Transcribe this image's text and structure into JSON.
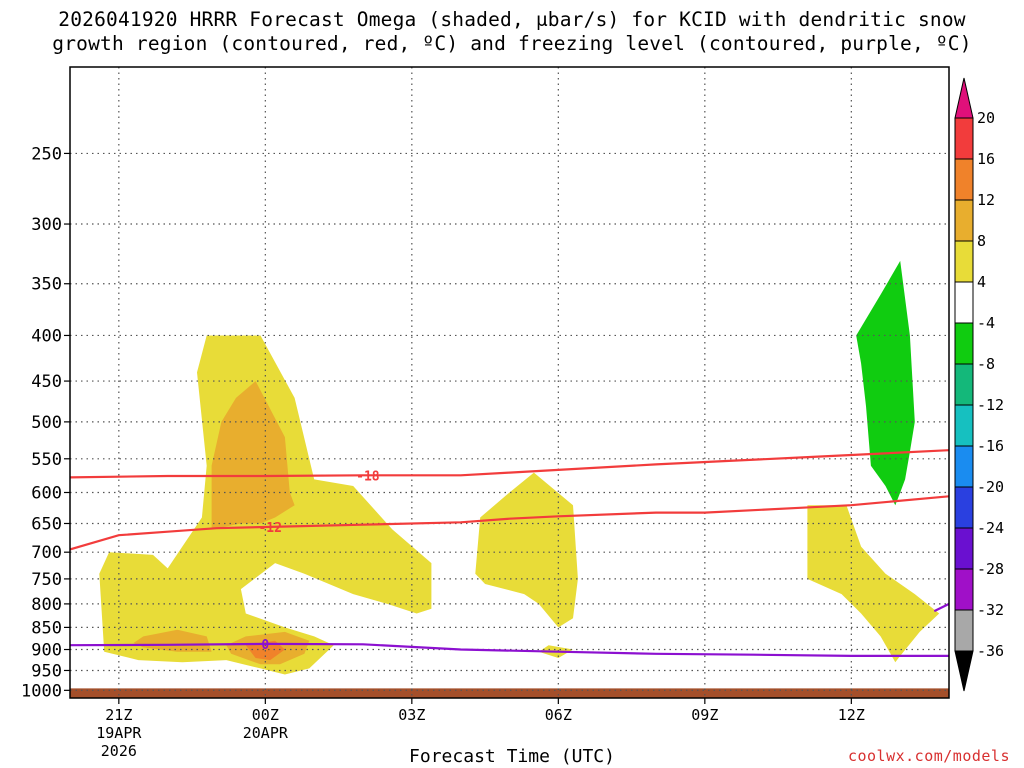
{
  "chart_data": {
    "type": "heatmap",
    "title_lines": [
      "2026041920 HRRR Forecast Omega (shaded, μbar/s) for KCID with dendritic snow",
      "growth region (contoured, red, ºC) and freezing level (contoured, purple, ºC)"
    ],
    "xlabel": "Forecast Time (UTC)",
    "ylabel": "",
    "x_range_hours": [
      -1,
      17
    ],
    "y_range_hpa": [
      1020,
      200
    ],
    "y_scale": "log-pressure",
    "grid": true,
    "x_ticks": [
      {
        "hour": 0,
        "lines": [
          "21Z",
          "19APR",
          "2026"
        ]
      },
      {
        "hour": 3,
        "lines": [
          "00Z",
          "20APR"
        ]
      },
      {
        "hour": 6,
        "lines": [
          "03Z"
        ]
      },
      {
        "hour": 9,
        "lines": [
          "06Z"
        ]
      },
      {
        "hour": 12,
        "lines": [
          "09Z"
        ]
      },
      {
        "hour": 15,
        "lines": [
          "12Z"
        ]
      }
    ],
    "y_ticks": [
      250,
      300,
      350,
      400,
      450,
      500,
      550,
      600,
      650,
      700,
      750,
      800,
      850,
      900,
      950,
      1000
    ],
    "colorbar": {
      "labels": [
        "20",
        "16",
        "12",
        "8",
        "4",
        "-4",
        "-8",
        "-12",
        "-16",
        "-20",
        "-24",
        "-28",
        "-32",
        "-36"
      ],
      "bins": [
        {
          "from": 16,
          "to": 20,
          "color": "#f23c3c"
        },
        {
          "from": 12,
          "to": 16,
          "color": "#f0822a"
        },
        {
          "from": 8,
          "to": 12,
          "color": "#e8ae2e"
        },
        {
          "from": 4,
          "to": 8,
          "color": "#e8dc38"
        },
        {
          "from": -4,
          "to": 4,
          "color": "#ffffff"
        },
        {
          "from": -8,
          "to": -4,
          "color": "#10cc10"
        },
        {
          "from": -12,
          "to": -8,
          "color": "#14b87a"
        },
        {
          "from": -16,
          "to": -12,
          "color": "#16c0c0"
        },
        {
          "from": -20,
          "to": -16,
          "color": "#1a8cf0"
        },
        {
          "from": -24,
          "to": -20,
          "color": "#2a40e0"
        },
        {
          "from": -28,
          "to": -24,
          "color": "#6a10d0"
        },
        {
          "from": -32,
          "to": -28,
          "color": "#a010c8"
        },
        {
          "from": -36,
          "to": -32,
          "color": "#a8a8a8"
        }
      ],
      "top_arrow_color": "#e0107a",
      "bottom_arrow_color": "#000000"
    },
    "shaded_regions": [
      {
        "value_bin": "4 to 8",
        "color": "#e8dc38",
        "points": [
          [
            1.8,
            400
          ],
          [
            2.9,
            400
          ],
          [
            3.6,
            470
          ],
          [
            4,
            580
          ],
          [
            4.8,
            590
          ],
          [
            5.6,
            660
          ],
          [
            6.4,
            720
          ],
          [
            6.4,
            810
          ],
          [
            6.1,
            820
          ],
          [
            5.5,
            800
          ],
          [
            4.8,
            780
          ],
          [
            3.8,
            740
          ],
          [
            3.2,
            720
          ],
          [
            2.5,
            770
          ],
          [
            2.6,
            820
          ],
          [
            3.4,
            850
          ],
          [
            4,
            870
          ],
          [
            4.4,
            890
          ],
          [
            3.9,
            945
          ],
          [
            3.4,
            960
          ],
          [
            2.9,
            945
          ],
          [
            2.2,
            925
          ],
          [
            1.3,
            930
          ],
          [
            0.4,
            925
          ],
          [
            -0.3,
            905
          ],
          [
            -0.4,
            740
          ],
          [
            -0.2,
            700
          ],
          [
            0.7,
            705
          ],
          [
            1,
            730
          ],
          [
            1.3,
            690
          ],
          [
            1.7,
            640
          ],
          [
            1.8,
            560
          ],
          [
            1.6,
            440
          ]
        ]
      },
      {
        "value_bin": "4 to 8",
        "color": "#e8dc38",
        "points": [
          [
            8.5,
            570
          ],
          [
            9.3,
            620
          ],
          [
            9.4,
            750
          ],
          [
            9.3,
            830
          ],
          [
            9,
            850
          ],
          [
            8.6,
            800
          ],
          [
            8.3,
            780
          ],
          [
            7.5,
            760
          ],
          [
            7.3,
            740
          ],
          [
            7.4,
            640
          ],
          [
            8,
            600
          ]
        ]
      },
      {
        "value_bin": "4 to 8",
        "color": "#e8dc38",
        "points": [
          [
            8.8,
            890
          ],
          [
            9.3,
            900
          ],
          [
            9,
            920
          ],
          [
            8.6,
            905
          ]
        ]
      },
      {
        "value_bin": "4 to 8",
        "color": "#e8dc38",
        "points": [
          [
            14.1,
            620
          ],
          [
            14.9,
            620
          ],
          [
            15.2,
            690
          ],
          [
            15.7,
            740
          ],
          [
            16.3,
            780
          ],
          [
            16.8,
            820
          ],
          [
            16.4,
            860
          ],
          [
            16,
            915
          ],
          [
            15.9,
            930
          ],
          [
            15.6,
            870
          ],
          [
            15.2,
            820
          ],
          [
            14.8,
            780
          ],
          [
            14.1,
            750
          ],
          [
            14.1,
            690
          ]
        ]
      },
      {
        "value_bin": "8 to 12",
        "color": "#e8ae2e",
        "points": [
          [
            2.8,
            450
          ],
          [
            3.4,
            520
          ],
          [
            3.5,
            600
          ],
          [
            3.6,
            620
          ],
          [
            3.2,
            640
          ],
          [
            2.9,
            650
          ],
          [
            2.5,
            650
          ],
          [
            1.9,
            660
          ],
          [
            1.9,
            560
          ],
          [
            2.1,
            500
          ],
          [
            2.4,
            470
          ]
        ]
      },
      {
        "value_bin": "8 to 12",
        "color": "#e8ae2e",
        "points": [
          [
            0.5,
            870
          ],
          [
            1.2,
            855
          ],
          [
            1.8,
            870
          ],
          [
            1.9,
            905
          ],
          [
            1.2,
            905
          ],
          [
            0.5,
            895
          ],
          [
            0.3,
            885
          ]
        ]
      },
      {
        "value_bin": "8 to 12",
        "color": "#e8ae2e",
        "points": [
          [
            2.6,
            870
          ],
          [
            3.4,
            860
          ],
          [
            3.9,
            880
          ],
          [
            3.8,
            910
          ],
          [
            3.3,
            935
          ],
          [
            2.9,
            935
          ],
          [
            2.3,
            910
          ],
          [
            2.2,
            890
          ]
        ]
      },
      {
        "value_bin": "12 to 16",
        "color": "#f0822a",
        "points": [
          [
            2.6,
            890
          ],
          [
            3.2,
            880
          ],
          [
            3.4,
            900
          ],
          [
            3.1,
            925
          ],
          [
            2.8,
            920
          ]
        ]
      },
      {
        "value_bin": "-8 to -4",
        "color": "#10cc10",
        "points": [
          [
            16,
            330
          ],
          [
            16.2,
            400
          ],
          [
            16.3,
            500
          ],
          [
            16.2,
            540
          ],
          [
            16.1,
            580
          ],
          [
            16,
            600
          ],
          [
            15.9,
            620
          ],
          [
            15.7,
            590
          ],
          [
            15.4,
            560
          ],
          [
            15.3,
            480
          ],
          [
            15.2,
            430
          ],
          [
            15.1,
            400
          ],
          [
            15.6,
            360
          ]
        ]
      }
    ],
    "contours": [
      {
        "name": "dgz_top",
        "color": "#f23c3c",
        "label": "-18",
        "label_at_hour": 5.1,
        "points": [
          [
            -1,
            577
          ],
          [
            1,
            575
          ],
          [
            3,
            575
          ],
          [
            5,
            574
          ],
          [
            7,
            574
          ],
          [
            8,
            570
          ],
          [
            11,
            558
          ],
          [
            14,
            548
          ],
          [
            17,
            538
          ]
        ]
      },
      {
        "name": "dgz_bottom",
        "color": "#f23c3c",
        "label": "-12",
        "label_at_hour": 3.1,
        "points": [
          [
            -1,
            695
          ],
          [
            0,
            670
          ],
          [
            1,
            664
          ],
          [
            2,
            658
          ],
          [
            3,
            656
          ],
          [
            5,
            652
          ],
          [
            7,
            648
          ],
          [
            8,
            642
          ],
          [
            9,
            638
          ],
          [
            11,
            632
          ],
          [
            12,
            632
          ],
          [
            14,
            624
          ],
          [
            15,
            620
          ],
          [
            17,
            606
          ]
        ]
      },
      {
        "name": "freezing_level",
        "color": "#8c10d0",
        "label": "0",
        "label_at_hour": 3.0,
        "points": [
          [
            -1,
            890
          ],
          [
            1,
            889
          ],
          [
            3,
            887
          ],
          [
            5,
            888
          ],
          [
            7,
            900
          ],
          [
            9,
            905
          ],
          [
            11,
            910
          ],
          [
            13,
            912
          ],
          [
            15,
            915
          ],
          [
            17,
            915
          ]
        ]
      },
      {
        "name": "freezing_level_east",
        "color": "#8c10d0",
        "label": "",
        "label_at_hour": null,
        "points": [
          [
            16.7,
            815
          ],
          [
            17,
            800
          ]
        ]
      }
    ],
    "surface_below": {
      "color": "#a44f2a",
      "from_hpa": 995
    }
  },
  "credit": "coolwx.com/models"
}
